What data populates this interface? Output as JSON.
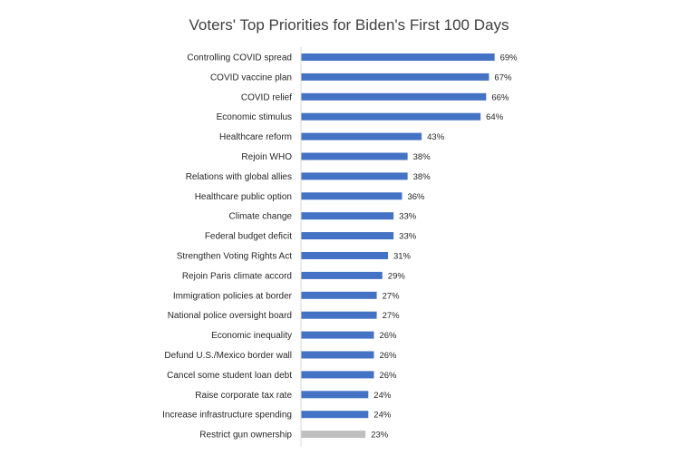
{
  "chart_data": {
    "type": "bar",
    "orientation": "horizontal",
    "title": "Voters' Top Priorities for Biden's First 100 Days",
    "xlabel": "",
    "ylabel": "",
    "xlim": [
      0,
      100
    ],
    "grid": false,
    "legend": "none",
    "value_suffix": "%",
    "categories": [
      "Controlling COVID spread",
      "COVID vaccine plan",
      "COVID relief",
      "Economic stimulus",
      "Healthcare reform",
      "Rejoin WHO",
      "Relations with global allies",
      "Healthcare public option",
      "Climate change",
      "Federal budget deficit",
      "Strengthen Voting Rights Act",
      "Rejoin Paris climate accord",
      "Immigration policies at border",
      "National police oversight board",
      "Economic inequality",
      "Defund U.S./Mexico border wall",
      "Cancel some student loan debt",
      "Raise corporate tax rate",
      "Increase infrastructure spending",
      "Restrict gun ownership"
    ],
    "values": [
      69,
      67,
      66,
      64,
      43,
      38,
      38,
      36,
      33,
      33,
      31,
      29,
      27,
      27,
      26,
      26,
      26,
      24,
      24,
      23
    ],
    "value_labels": [
      "69%",
      "67%",
      "66%",
      "64%",
      "43%",
      "38%",
      "38%",
      "36%",
      "33%",
      "33%",
      "31%",
      "29%",
      "27%",
      "27%",
      "26%",
      "26%",
      "26%",
      "24%",
      "24%",
      "23%"
    ],
    "colors": {
      "bar": "#4472C4",
      "highlight_bar": "#BFBFBF",
      "axis": "#D9D9D9",
      "title": "#404040",
      "text": "#262626"
    },
    "highlight_index": 19
  }
}
